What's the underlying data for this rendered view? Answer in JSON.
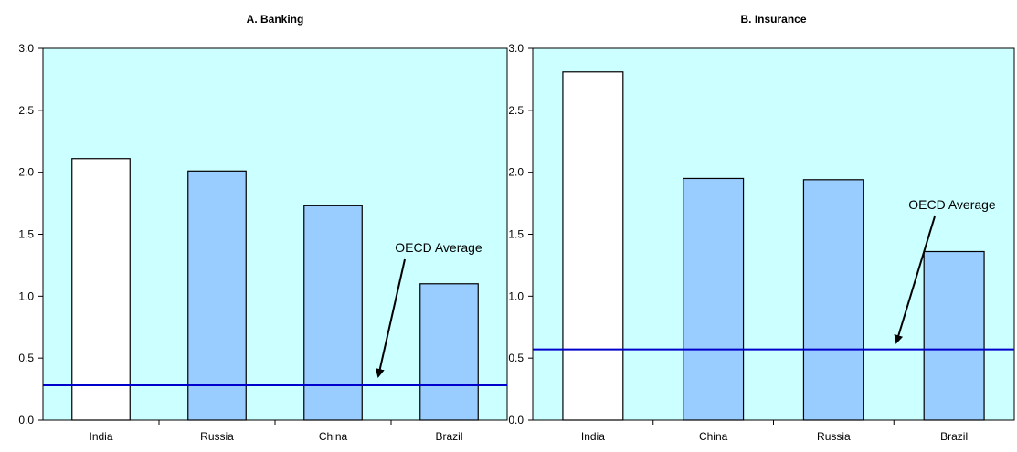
{
  "chart_data": [
    {
      "type": "bar",
      "title": "A. Banking",
      "xlabel": "",
      "ylabel": "",
      "categories": [
        "India",
        "Russia",
        "China",
        "Brazil"
      ],
      "values": [
        2.11,
        2.01,
        1.73,
        1.1
      ],
      "ylim": [
        0,
        3.0
      ],
      "yticks": [
        0.0,
        0.5,
        1.0,
        1.5,
        2.0,
        2.5,
        3.0
      ],
      "reference_line": {
        "label": "OECD Average",
        "value": 0.28
      },
      "bar_colors": [
        "#ffffff",
        "#99ccff",
        "#99ccff",
        "#99ccff"
      ],
      "grid": false,
      "legend": "none"
    },
    {
      "type": "bar",
      "title": "B. Insurance",
      "xlabel": "",
      "ylabel": "",
      "categories": [
        "India",
        "China",
        "Russia",
        "Brazil"
      ],
      "values": [
        2.81,
        1.95,
        1.94,
        1.36
      ],
      "ylim": [
        0,
        3.0
      ],
      "yticks": [
        0.0,
        0.5,
        1.0,
        1.5,
        2.0,
        2.5,
        3.0
      ],
      "reference_line": {
        "label": "OECD Average",
        "value": 0.57
      },
      "bar_colors": [
        "#ffffff",
        "#99ccff",
        "#99ccff",
        "#99ccff"
      ],
      "grid": false,
      "legend": "none"
    }
  ],
  "colors": {
    "plot_background": "#ccffff",
    "reference_line": "#0000cc",
    "bar_outline": "#000000"
  }
}
